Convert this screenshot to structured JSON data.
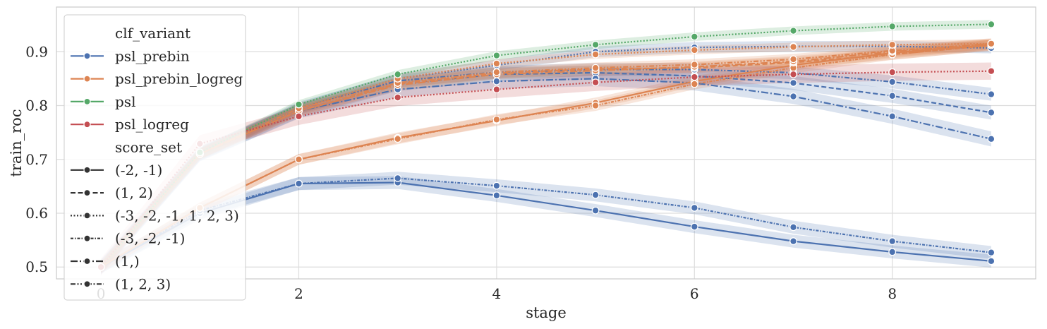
{
  "chart_data": {
    "type": "line",
    "title": "",
    "xlabel": "stage",
    "ylabel": "train_roc",
    "xlim": [
      -0.45,
      9.45
    ],
    "ylim": [
      0.478,
      0.983
    ],
    "x_ticks": [
      2,
      4,
      6,
      8
    ],
    "x_tick_labels": [
      "2",
      "4",
      "6",
      "8"
    ],
    "y_ticks": [
      0.5,
      0.6,
      0.7,
      0.8,
      0.9
    ],
    "y_tick_labels": [
      "0.5",
      "0.6",
      "0.7",
      "0.8",
      "0.9"
    ],
    "grid": true,
    "legend_position": "upper-left",
    "hue_title": "clf_variant",
    "style_title": "score_set",
    "hue_levels": [
      {
        "name": "psl_prebin",
        "color": "#4c72b0"
      },
      {
        "name": "psl_prebin_logreg",
        "color": "#dd8452"
      },
      {
        "name": "psl",
        "color": "#55a868"
      },
      {
        "name": "psl_logreg",
        "color": "#c44e52"
      }
    ],
    "style_levels": [
      {
        "name": "(-2, -1)",
        "dash": "solid"
      },
      {
        "name": "(1, 2)",
        "dash": "dashed"
      },
      {
        "name": "(-3, -2, -1, 1, 2, 3)",
        "dash": "dotted"
      },
      {
        "name": "(-3, -2, -1)",
        "dash": "dash-dot-fine"
      },
      {
        "name": "(1,)",
        "dash": "dash-dot"
      },
      {
        "name": "(1, 2, 3)",
        "dash": "dash-dot-dot"
      }
    ],
    "series": [
      {
        "hue": "psl_prebin",
        "style": "(-2, -1)",
        "x": [
          0,
          1,
          2,
          3,
          4,
          5,
          6,
          7,
          8,
          9
        ],
        "y": [
          0.5,
          0.6,
          0.655,
          0.657,
          0.633,
          0.605,
          0.575,
          0.548,
          0.528,
          0.511
        ],
        "band": 0.012
      },
      {
        "hue": "psl_prebin",
        "style": "(-3, -2, -1)",
        "x": [
          0,
          1,
          2,
          3,
          4,
          5,
          6,
          7,
          8,
          9
        ],
        "y": [
          0.5,
          0.605,
          0.655,
          0.665,
          0.651,
          0.634,
          0.61,
          0.574,
          0.548,
          0.527
        ],
        "band": 0.012
      },
      {
        "hue": "psl_prebin",
        "style": "(1, 2)",
        "x": [
          0,
          1,
          2,
          3,
          4,
          5,
          6,
          7,
          8,
          9
        ],
        "y": [
          0.5,
          0.71,
          0.79,
          0.84,
          0.858,
          0.861,
          0.855,
          0.842,
          0.818,
          0.787
        ],
        "band": 0.013
      },
      {
        "hue": "psl_prebin",
        "style": "(1,)",
        "x": [
          0,
          1,
          2,
          3,
          4,
          5,
          6,
          7,
          8,
          9
        ],
        "y": [
          0.5,
          0.71,
          0.79,
          0.83,
          0.845,
          0.85,
          0.842,
          0.817,
          0.78,
          0.738
        ],
        "band": 0.014
      },
      {
        "hue": "psl_prebin",
        "style": "(1, 2, 3)",
        "x": [
          0,
          1,
          2,
          3,
          4,
          5,
          6,
          7,
          8,
          9
        ],
        "y": [
          0.5,
          0.71,
          0.795,
          0.846,
          0.862,
          0.867,
          0.867,
          0.861,
          0.844,
          0.821
        ],
        "band": 0.012
      },
      {
        "hue": "psl_prebin",
        "style": "(-3, -2, -1, 1, 2, 3)",
        "x": [
          0,
          1,
          2,
          3,
          4,
          5,
          6,
          7,
          8,
          9
        ],
        "y": [
          0.5,
          0.71,
          0.795,
          0.85,
          0.875,
          0.9,
          0.908,
          0.91,
          0.91,
          0.907
        ],
        "band": 0.01
      },
      {
        "hue": "psl_prebin_logreg",
        "style": "(-2, -1)",
        "x": [
          0,
          1,
          2,
          3,
          4,
          5,
          6,
          7,
          8,
          9
        ],
        "y": [
          0.5,
          0.61,
          0.7,
          0.74,
          0.772,
          0.805,
          0.845,
          0.875,
          0.898,
          0.913
        ],
        "band": 0.01
      },
      {
        "hue": "psl_prebin_logreg",
        "style": "(-3, -2, -1)",
        "x": [
          0,
          1,
          2,
          3,
          4,
          5,
          6,
          7,
          8,
          9
        ],
        "y": [
          0.5,
          0.61,
          0.7,
          0.738,
          0.774,
          0.8,
          0.84,
          0.87,
          0.895,
          0.912
        ],
        "band": 0.01
      },
      {
        "hue": "psl_prebin_logreg",
        "style": "(1, 2)",
        "x": [
          0,
          1,
          2,
          3,
          4,
          5,
          6,
          7,
          8,
          9
        ],
        "y": [
          0.5,
          0.71,
          0.79,
          0.84,
          0.86,
          0.868,
          0.87,
          0.88,
          0.895,
          0.912
        ],
        "band": 0.01
      },
      {
        "hue": "psl_prebin_logreg",
        "style": "(1,)",
        "x": [
          0,
          1,
          2,
          3,
          4,
          5,
          6,
          7,
          8,
          9
        ],
        "y": [
          0.5,
          0.71,
          0.79,
          0.838,
          0.858,
          0.865,
          0.872,
          0.882,
          0.9,
          0.914
        ],
        "band": 0.01
      },
      {
        "hue": "psl_prebin_logreg",
        "style": "(1, 2, 3)",
        "x": [
          0,
          1,
          2,
          3,
          4,
          5,
          6,
          7,
          8,
          9
        ],
        "y": [
          0.5,
          0.71,
          0.795,
          0.842,
          0.862,
          0.87,
          0.876,
          0.886,
          0.902,
          0.915
        ],
        "band": 0.01
      },
      {
        "hue": "psl_prebin_logreg",
        "style": "(-3, -2, -1, 1, 2, 3)",
        "x": [
          0,
          1,
          2,
          3,
          4,
          5,
          6,
          7,
          8,
          9
        ],
        "y": [
          0.5,
          0.71,
          0.795,
          0.85,
          0.878,
          0.895,
          0.903,
          0.909,
          0.913,
          0.915
        ],
        "band": 0.008
      },
      {
        "hue": "psl",
        "style": "(-3, -2, -1, 1, 2, 3)",
        "x": [
          0,
          1,
          2,
          3,
          4,
          5,
          6,
          7,
          8,
          9
        ],
        "y": [
          0.5,
          0.713,
          0.802,
          0.858,
          0.893,
          0.913,
          0.928,
          0.939,
          0.947,
          0.951
        ],
        "band": 0.008
      },
      {
        "hue": "psl_logreg",
        "style": "(-3, -2, -1, 1, 2, 3)",
        "x": [
          0,
          1,
          2,
          3,
          4,
          5,
          6,
          7,
          8,
          9
        ],
        "y": [
          0.5,
          0.729,
          0.78,
          0.815,
          0.83,
          0.843,
          0.853,
          0.858,
          0.862,
          0.864
        ],
        "band": 0.016
      }
    ]
  }
}
